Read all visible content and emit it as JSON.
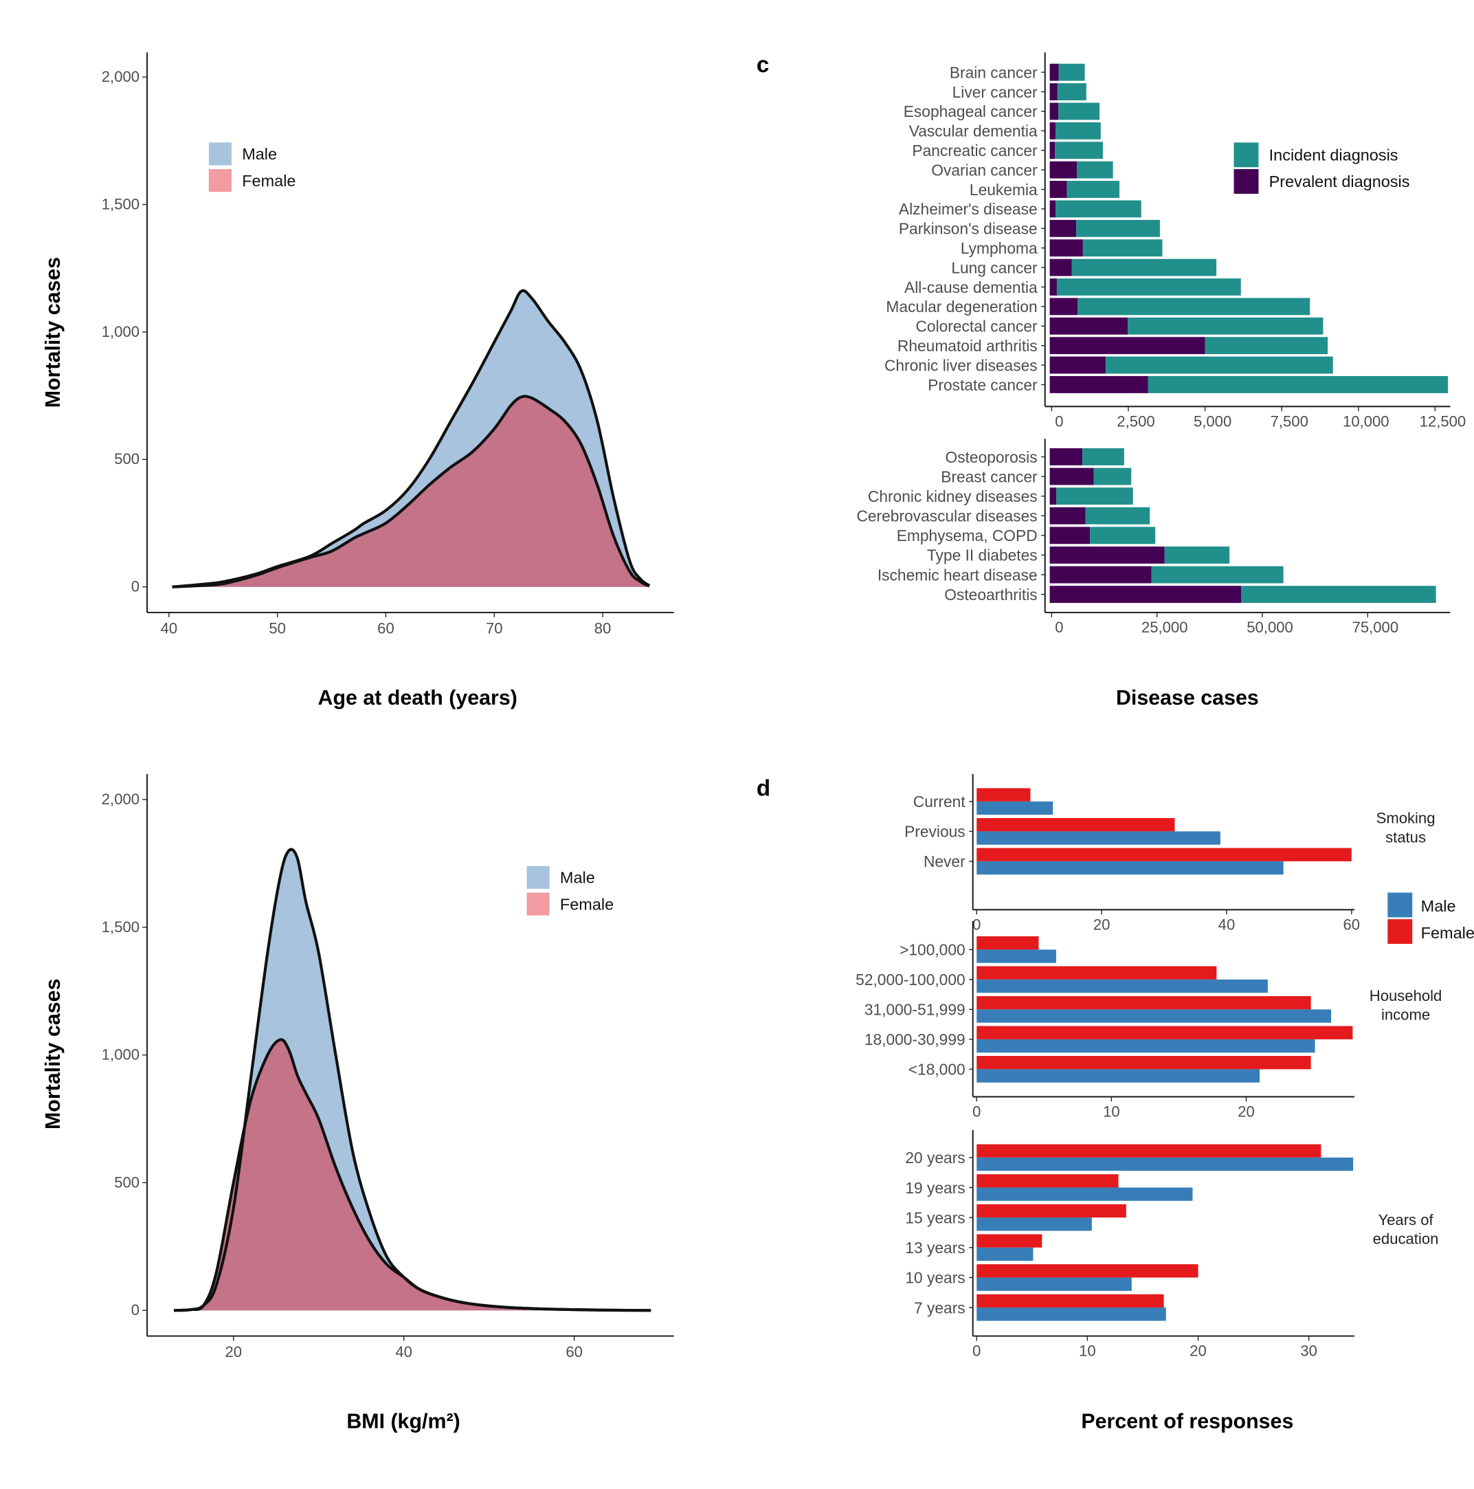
{
  "chart_data": [
    {
      "type": "area",
      "xlabel": "Age at death (years)",
      "ylabel": "Mortality cases",
      "xticks": [
        40,
        50,
        60,
        70,
        80
      ],
      "yticks": [
        0,
        500,
        1000,
        1500,
        2000
      ],
      "ytick_labels": [
        "0",
        "500",
        "1,000",
        "1,500",
        "2,000"
      ],
      "legend": "top-left",
      "colors": {
        "Male": "#a7c3de",
        "Female": "#c56f84",
        "Female_legend": "#f29ba3"
      },
      "series": [
        {
          "name": "Male",
          "x": [
            40.3,
            43,
            45,
            48,
            50,
            53,
            55,
            57,
            58,
            60,
            62,
            64,
            66,
            68,
            70,
            71.5,
            72.5,
            73.5,
            75,
            76.5,
            78,
            79.5,
            81,
            82.5,
            83.5,
            84.3
          ],
          "y": [
            0,
            10,
            20,
            50,
            80,
            120,
            170,
            220,
            250,
            300,
            380,
            500,
            650,
            800,
            960,
            1080,
            1160,
            1130,
            1040,
            960,
            850,
            650,
            350,
            100,
            30,
            5
          ]
        },
        {
          "name": "Female",
          "x": [
            40.3,
            43,
            45,
            48,
            50,
            53,
            55,
            57,
            58,
            60,
            62,
            64,
            66,
            68,
            70,
            71.5,
            72.5,
            73.5,
            75,
            76.5,
            78,
            79.5,
            81,
            82.5,
            83.5,
            84.3
          ],
          "y": [
            0,
            5,
            12,
            45,
            75,
            115,
            140,
            190,
            210,
            250,
            320,
            400,
            470,
            530,
            620,
            710,
            745,
            740,
            700,
            650,
            560,
            400,
            200,
            60,
            20,
            3
          ]
        }
      ]
    },
    {
      "type": "area",
      "xlabel": "BMI (kg/m²)",
      "ylabel": "Mortality cases",
      "xticks": [
        20,
        40,
        60
      ],
      "yticks": [
        0,
        500,
        1000,
        1500,
        2000
      ],
      "ytick_labels": [
        "0",
        "500",
        "1,000",
        "1,500",
        "2,000"
      ],
      "legend": "top-right",
      "colors": {
        "Male": "#a7c3de",
        "Female": "#c56f84",
        "Female_legend": "#f29ba3"
      },
      "series": [
        {
          "name": "Male",
          "x": [
            13,
            15,
            16.5,
            18,
            20,
            22,
            24,
            25.5,
            26.5,
            27.5,
            28.5,
            30,
            32,
            34,
            36,
            38,
            40,
            42,
            45,
            48,
            52,
            56,
            60,
            64,
            69
          ],
          "y": [
            0,
            3,
            20,
            100,
            400,
            900,
            1400,
            1700,
            1800,
            1770,
            1600,
            1400,
            1000,
            620,
            380,
            210,
            130,
            80,
            45,
            25,
            12,
            6,
            3,
            1,
            0
          ]
        },
        {
          "name": "Female",
          "x": [
            13,
            15,
            16.5,
            18,
            20,
            22,
            24,
            25.5,
            26.5,
            27.5,
            28.5,
            30,
            32,
            34,
            36,
            38,
            40,
            42,
            45,
            48,
            52,
            56,
            60,
            64,
            69
          ],
          "y": [
            0,
            3,
            20,
            150,
            500,
            820,
            1000,
            1060,
            1020,
            920,
            850,
            750,
            560,
            400,
            270,
            180,
            130,
            80,
            45,
            25,
            12,
            6,
            3,
            1,
            0
          ]
        }
      ]
    },
    {
      "type": "bar",
      "panel_label": "c",
      "xlabel": "Disease cases",
      "stacked": true,
      "legend": "top-right",
      "legend_items": [
        {
          "name": "Incident diagnosis",
          "color": "#21908c"
        },
        {
          "name": "Prevalent diagnosis",
          "color": "#440154"
        }
      ],
      "facets": [
        {
          "categories": [
            "Brain cancer",
            "Liver cancer",
            "Esophageal cancer",
            "Vascular dementia",
            "Pancreatic cancer",
            "Ovarian cancer",
            "Leukemia",
            "Alzheimer's disease",
            "Parkinson's disease",
            "Lymphoma",
            "Lung cancer",
            "All-cause dementia",
            "Macular degeneration",
            "Colorectal cancer",
            "Rheumatoid arthritis",
            "Chronic liver diseases",
            "Prostate cancer"
          ],
          "prevalent": [
            230,
            190,
            220,
            130,
            110,
            820,
            500,
            130,
            800,
            1020,
            660,
            170,
            850,
            2480,
            5000,
            1760,
            3140
          ],
          "incident": [
            850,
            940,
            1340,
            1470,
            1560,
            1180,
            1710,
            2790,
            2730,
            2590,
            4710,
            6000,
            7570,
            6370,
            4000,
            7410,
            9780
          ],
          "xticks": [
            0,
            2500,
            5000,
            7500,
            10000,
            12500
          ],
          "xtick_labels": [
            "0",
            "2,500",
            "5,000",
            "7,500",
            "10,000",
            "12,500"
          ]
        },
        {
          "categories": [
            "Osteoporosis",
            "Breast cancer",
            "Chronic kidney diseases",
            "Cerebrovascular diseases",
            "Emphysema, COPD",
            "Type II diabetes",
            "Ischemic heart disease",
            "Osteoarthritis"
          ],
          "prevalent": [
            7300,
            10000,
            1100,
            8000,
            9100,
            26800,
            23700,
            45000
          ],
          "incident": [
            9900,
            8900,
            18200,
            15300,
            15500,
            15400,
            31300,
            46200
          ],
          "xticks": [
            0,
            25000,
            50000,
            75000
          ],
          "xtick_labels": [
            "0",
            "25,000",
            "50,000",
            "75,000"
          ]
        }
      ]
    },
    {
      "type": "bar",
      "panel_label": "d",
      "xlabel": "Percent of responses",
      "legend": "right",
      "legend_items": [
        {
          "name": "Male",
          "color": "#377eb8"
        },
        {
          "name": "Female",
          "color": "#e41a1c"
        }
      ],
      "facets": [
        {
          "label": [
            "Smoking",
            "status"
          ],
          "categories": [
            "Current",
            "Previous",
            "Never"
          ],
          "female": [
            8.6,
            31.7,
            60
          ],
          "male": [
            12.2,
            39,
            49.1
          ],
          "xticks": [
            0,
            20,
            40,
            60
          ]
        },
        {
          "label": [
            "Household",
            "income"
          ],
          "categories": [
            ">100,000",
            "52,000-100,000",
            "31,000-51,999",
            "18,000-30,999",
            "<18,000"
          ],
          "female": [
            4.6,
            17.8,
            24.8,
            27.9,
            24.8
          ],
          "male": [
            5.9,
            21.6,
            26.3,
            25.1,
            21
          ],
          "xticks": [
            0,
            10,
            20
          ]
        },
        {
          "label": [
            "Years of",
            "education"
          ],
          "categories": [
            "20 years",
            "19 years",
            "15 years",
            "13 years",
            "10 years",
            "7 years"
          ],
          "female": [
            31.1,
            12.8,
            13.5,
            5.9,
            20,
            16.9
          ],
          "male": [
            34,
            19.5,
            10.4,
            5.1,
            14,
            17.1
          ],
          "xticks": [
            0,
            10,
            20,
            30
          ]
        }
      ]
    }
  ]
}
